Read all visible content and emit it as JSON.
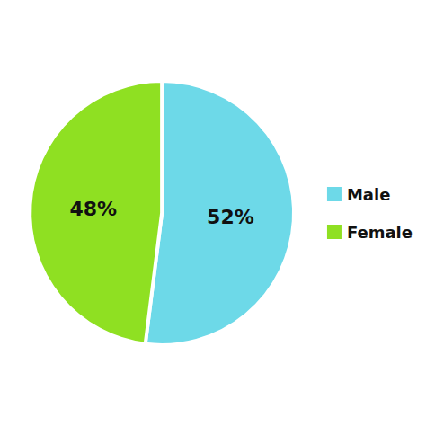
{
  "chart_data": {
    "type": "pie",
    "categories": [
      "Male",
      "Female"
    ],
    "values": [
      52,
      48
    ],
    "value_labels": [
      "52%",
      "48%"
    ],
    "colors": [
      "#6DD9E8",
      "#8FE022"
    ],
    "data_labels": true,
    "legend": "right"
  }
}
